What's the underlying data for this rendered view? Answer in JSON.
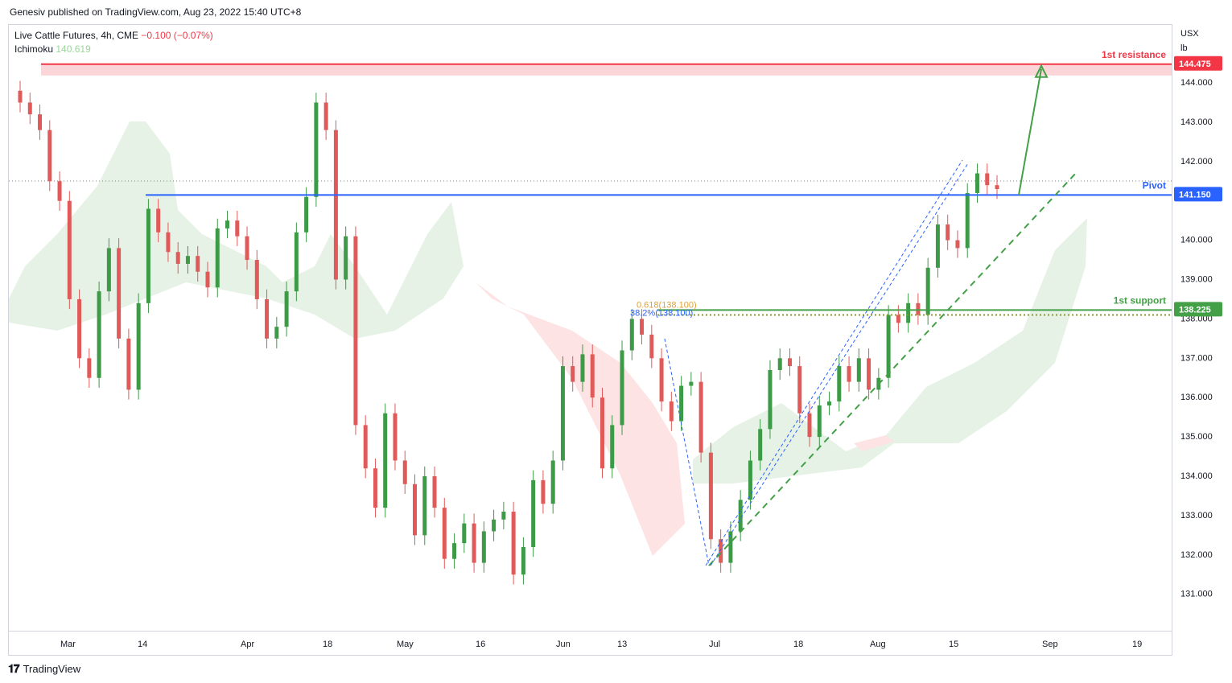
{
  "header": {
    "published": "Genesiv published on TradingView.com, Aug 23, 2022 15:40 UTC+8"
  },
  "legend": {
    "name": "Live Cattle Futures, 4h, CME",
    "change": "−0.100 (−0.07%)",
    "indicator": "Ichimoku",
    "indicator_value": "140.619"
  },
  "axis": {
    "unit_top": "USX",
    "unit_bottom": "lb"
  },
  "footer": {
    "logo_text": "TradingView"
  },
  "colors": {
    "bull": "#3d9a47",
    "bear": "#e05a5a",
    "resistance": "#f23645",
    "pivot": "#2962ff",
    "support": "#43a047",
    "fib": "#e0a030",
    "cloud_green": "#e6f2e6",
    "cloud_red": "#fde3e3"
  },
  "chart_data": {
    "type": "candlestick",
    "symbol": "Live Cattle Futures",
    "interval": "4h",
    "exchange": "CME",
    "ylim": [
      130.2,
      145.3
    ],
    "y_ticks": [
      "144.000",
      "143.000",
      "142.000",
      "140.000",
      "139.000",
      "138.000",
      "137.000",
      "136.000",
      "135.000",
      "134.000",
      "133.000",
      "132.000",
      "131.000"
    ],
    "x_ticks": [
      "Mar",
      "14",
      "Apr",
      "18",
      "May",
      "16",
      "Jun",
      "13",
      "Jul",
      "18",
      "Aug",
      "15",
      "Sep",
      "19"
    ],
    "levels": [
      {
        "label": "1st resistance",
        "price": 144.475,
        "price_label": "144.475",
        "color": "#f23645"
      },
      {
        "label": "Pivot",
        "price": 141.15,
        "price_label": "141.150",
        "color": "#2962ff"
      },
      {
        "label": "1st support",
        "price": 138.225,
        "price_label": "138.225",
        "color": "#43a047"
      }
    ],
    "fibonacci": [
      {
        "label": "0.618(138.100)",
        "price": 138.1,
        "color": "#e0a030"
      },
      {
        "label": "38.2%(138.100)",
        "price": 138.1,
        "color": "#2962ff"
      }
    ],
    "series_approx_close": [
      143.5,
      143.2,
      142.8,
      141.5,
      141.0,
      138.5,
      137.0,
      136.5,
      138.7,
      139.8,
      137.5,
      136.2,
      138.4,
      140.8,
      140.2,
      139.7,
      139.4,
      139.6,
      139.2,
      138.8,
      140.3,
      140.5,
      140.1,
      139.5,
      138.5,
      137.5,
      137.8,
      138.7,
      140.2,
      141.1,
      143.5,
      142.8,
      139.0,
      140.1,
      135.3,
      134.2,
      133.2,
      135.6,
      134.4,
      133.8,
      132.5,
      134.0,
      133.2,
      131.9,
      132.3,
      132.8,
      131.8,
      132.6,
      132.9,
      133.1,
      131.5,
      132.2,
      133.9,
      133.3,
      134.4,
      136.8,
      136.4,
      137.1,
      136.0,
      134.2,
      135.3,
      137.2,
      138.0,
      137.6,
      137.0,
      135.9,
      135.4,
      136.3,
      136.4,
      134.6,
      132.4,
      131.8,
      132.6,
      133.4,
      134.4,
      135.2,
      136.7,
      137.0,
      136.8,
      135.6,
      135.0,
      135.8,
      135.9,
      136.8,
      136.4,
      137.0,
      136.2,
      136.5,
      138.1,
      137.9,
      138.4,
      138.1,
      139.3,
      140.4,
      140.0,
      139.8,
      141.2,
      141.7,
      141.4,
      141.3
    ]
  }
}
